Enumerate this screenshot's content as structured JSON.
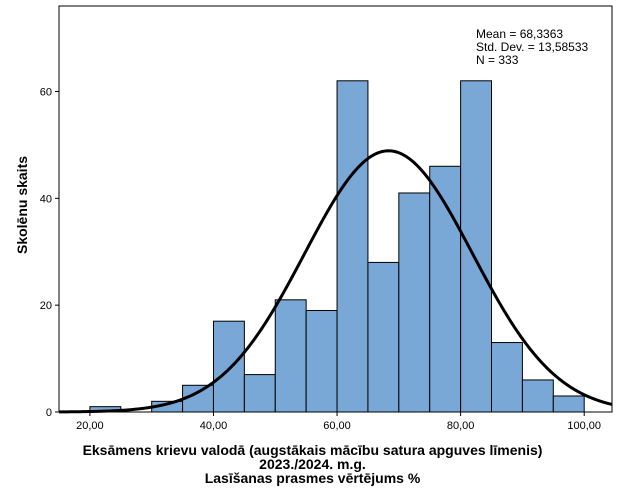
{
  "chart_data": {
    "type": "bar",
    "bins": [
      {
        "start": 20,
        "end": 25,
        "value": 1
      },
      {
        "start": 25,
        "end": 30,
        "value": 0
      },
      {
        "start": 30,
        "end": 35,
        "value": 2
      },
      {
        "start": 35,
        "end": 40,
        "value": 5
      },
      {
        "start": 40,
        "end": 45,
        "value": 17
      },
      {
        "start": 45,
        "end": 50,
        "value": 7
      },
      {
        "start": 50,
        "end": 55,
        "value": 21
      },
      {
        "start": 55,
        "end": 60,
        "value": 19
      },
      {
        "start": 60,
        "end": 65,
        "value": 62
      },
      {
        "start": 65,
        "end": 70,
        "value": 28
      },
      {
        "start": 70,
        "end": 75,
        "value": 41
      },
      {
        "start": 75,
        "end": 80,
        "value": 46
      },
      {
        "start": 80,
        "end": 85,
        "value": 62
      },
      {
        "start": 85,
        "end": 90,
        "value": 13
      },
      {
        "start": 90,
        "end": 95,
        "value": 6
      },
      {
        "start": 95,
        "end": 100,
        "value": 3
      }
    ],
    "normal_curve": {
      "mean": 68.3363,
      "sd": 13.58533,
      "n": 333,
      "bin_width": 5
    },
    "xlim": [
      15,
      104.5
    ],
    "ylim": [
      0,
      76
    ],
    "xticks": [
      20,
      40,
      60,
      80,
      100
    ],
    "xtick_labels": [
      "20,00",
      "40,00",
      "60,00",
      "80,00",
      "100,00"
    ],
    "yticks": [
      0,
      20,
      40,
      60
    ],
    "ytick_labels": [
      "0",
      "20",
      "40",
      "60"
    ],
    "xlabel_lines": [
      "Eksāmens krievu valodā (augstākais mācību satura apguves līmenis)",
      "2023./2024. m.g.",
      "Lasīšanas prasmes vērtējums %"
    ],
    "ylabel": "Skolēnu skaits",
    "stats": {
      "mean": "Mean = 68,3363",
      "sd": "Std. Dev. = 13,58533",
      "n": "N = 333"
    },
    "colors": {
      "bar_fill": "#79a7d6",
      "bar_stroke": "#000000",
      "curve": "#000000",
      "axis": "#000000"
    }
  }
}
